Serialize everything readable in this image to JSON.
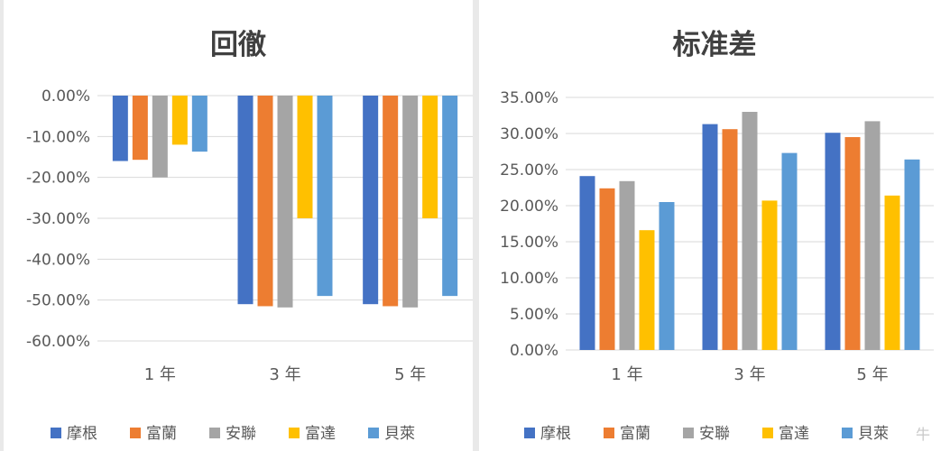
{
  "chart_data": [
    {
      "type": "bar",
      "title": "回徹",
      "categories": [
        "1 年",
        "3 年",
        "5 年"
      ],
      "ylim": [
        -0.6,
        0
      ],
      "yticks": [
        "0.00%",
        "-10.00%",
        "-20.00%",
        "-30.00%",
        "-40.00%",
        "-50.00%",
        "-60.00%"
      ],
      "grid": true,
      "legend_position": "bottom",
      "series": [
        {
          "name": "摩根",
          "color": "#4472c4",
          "values": [
            -0.16,
            -0.51,
            -0.51
          ]
        },
        {
          "name": "富蘭",
          "color": "#ed7d31",
          "values": [
            -0.157,
            -0.515,
            -0.515
          ]
        },
        {
          "name": "安聯",
          "color": "#a5a5a5",
          "values": [
            -0.2,
            -0.518,
            -0.518
          ]
        },
        {
          "name": "富達",
          "color": "#ffc000",
          "values": [
            -0.12,
            -0.3,
            -0.3
          ]
        },
        {
          "name": "貝萊",
          "color": "#5b9bd5",
          "values": [
            -0.137,
            -0.49,
            -0.49
          ]
        }
      ]
    },
    {
      "type": "bar",
      "title": "标准差",
      "categories": [
        "1 年",
        "3 年",
        "5 年"
      ],
      "ylim": [
        0,
        0.35
      ],
      "yticks": [
        "35.00%",
        "30.00%",
        "25.00%",
        "20.00%",
        "15.00%",
        "10.00%",
        "5.00%",
        "0.00%"
      ],
      "grid": true,
      "legend_position": "bottom",
      "series": [
        {
          "name": "摩根",
          "color": "#4472c4",
          "values": [
            0.241,
            0.313,
            0.301
          ]
        },
        {
          "name": "富蘭",
          "color": "#ed7d31",
          "values": [
            0.224,
            0.306,
            0.295
          ]
        },
        {
          "name": "安聯",
          "color": "#a5a5a5",
          "values": [
            0.234,
            0.33,
            0.317
          ]
        },
        {
          "name": "富達",
          "color": "#ffc000",
          "values": [
            0.166,
            0.207,
            0.214
          ]
        },
        {
          "name": "貝萊",
          "color": "#5b9bd5",
          "values": [
            0.205,
            0.273,
            0.264
          ]
        }
      ]
    }
  ],
  "watermark": "牛"
}
